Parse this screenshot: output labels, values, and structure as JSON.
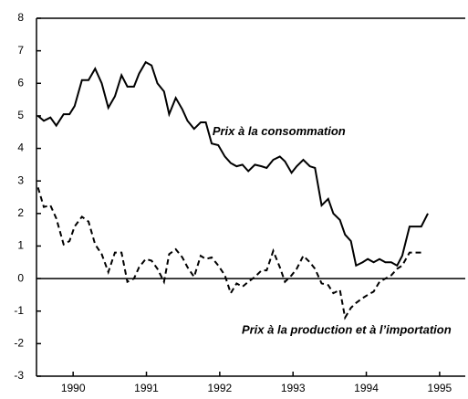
{
  "chart_data": {
    "type": "line",
    "x": [
      1990.02,
      1990.1,
      1990.19,
      1990.27,
      1990.37,
      1990.45,
      1990.52,
      1990.62,
      1990.71,
      1990.8,
      1990.89,
      1990.98,
      1991.07,
      1991.16,
      1991.24,
      1991.33,
      1991.4,
      1991.49,
      1991.57,
      1991.65,
      1991.74,
      1991.81,
      1991.9,
      1991.99,
      1992.06,
      1992.15,
      1992.24,
      1992.31,
      1992.39,
      1992.48,
      1992.57,
      1992.65,
      1992.73,
      1992.81,
      1992.89,
      1992.98,
      1993.07,
      1993.14,
      1993.23,
      1993.32,
      1993.39,
      1993.48,
      1993.55,
      1993.64,
      1993.73,
      1993.8,
      1993.89,
      1993.98,
      1994.05,
      1994.14,
      1994.21,
      1994.29,
      1994.36,
      1994.45,
      1994.52,
      1994.6,
      1994.68,
      1994.76,
      1994.84,
      1994.92,
      1994.99,
      1995.09,
      1995.25,
      1995.34
    ],
    "series": [
      {
        "color": "#000000",
        "dash": false,
        "values": [
          5.0,
          4.85,
          4.95,
          4.7,
          5.05,
          5.05,
          5.3,
          6.1,
          6.1,
          6.45,
          6.0,
          5.25,
          5.6,
          6.25,
          5.9,
          5.9,
          6.3,
          6.65,
          6.55,
          6.0,
          5.75,
          5.05,
          5.55,
          5.2,
          4.85,
          4.6,
          4.8,
          4.8,
          4.15,
          4.1,
          3.75,
          3.55,
          3.45,
          3.5,
          3.3,
          3.5,
          3.45,
          3.4,
          3.65,
          3.75,
          3.6,
          3.25,
          3.45,
          3.65,
          3.45,
          3.4,
          2.25,
          2.45,
          2.0,
          1.8,
          1.35,
          1.15,
          0.4,
          0.5,
          0.6,
          0.5,
          0.6,
          0.5,
          0.5,
          0.4,
          0.7,
          1.6,
          1.6,
          2.0
        ]
      },
      {
        "color": "#000000",
        "dash": true,
        "values": [
          2.8,
          2.2,
          2.25,
          1.85,
          1.05,
          1.15,
          1.6,
          1.9,
          1.75,
          1.05,
          0.75,
          0.2,
          0.8,
          0.8,
          -0.1,
          0.0,
          0.35,
          0.6,
          0.55,
          0.3,
          -0.1,
          0.75,
          0.9,
          0.65,
          0.35,
          0.05,
          0.7,
          0.6,
          0.65,
          0.4,
          0.1,
          -0.45,
          -0.15,
          -0.25,
          -0.1,
          0.05,
          0.25,
          0.25,
          0.85,
          0.35,
          -0.1,
          0.1,
          0.3,
          0.7,
          0.5,
          0.3,
          -0.15,
          -0.2,
          -0.45,
          -0.35,
          -1.2,
          -0.9,
          -0.75,
          -0.6,
          -0.5,
          -0.4,
          -0.1,
          0.0,
          0.1,
          0.3,
          0.4,
          0.8,
          0.8,
          null
        ]
      }
    ],
    "annotations": [
      {
        "text": "Prix à la consommation",
        "x": 1992.4,
        "y": 4.5
      },
      {
        "text": "Prix à la production et à l’importation",
        "x": 1992.8,
        "y": -1.6
      }
    ],
    "xlim": [
      1990,
      1995.85
    ],
    "xticks": [
      {
        "value": 1990.5,
        "label": "1990"
      },
      {
        "value": 1991.5,
        "label": "1991"
      },
      {
        "value": 1992.5,
        "label": "1992"
      },
      {
        "value": 1993.5,
        "label": "1993"
      },
      {
        "value": 1994.5,
        "label": "1994"
      },
      {
        "value": 1995.5,
        "label": "1995"
      }
    ],
    "ylim": [
      -3,
      8
    ],
    "yticks": [
      -3,
      -2,
      -1,
      0,
      1,
      2,
      3,
      4,
      5,
      6,
      7,
      8
    ]
  }
}
